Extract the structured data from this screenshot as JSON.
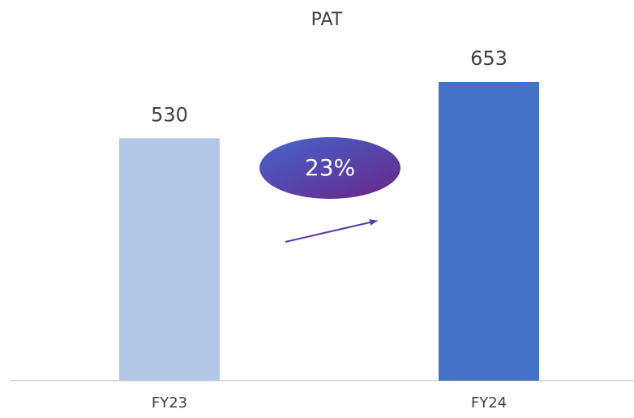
{
  "chart_data": {
    "type": "bar",
    "title": "PAT",
    "categories": [
      "FY23",
      "FY24"
    ],
    "values": [
      530,
      653
    ],
    "colors": [
      "#b4c7e7",
      "#4472c4"
    ],
    "annotation": "23%"
  }
}
